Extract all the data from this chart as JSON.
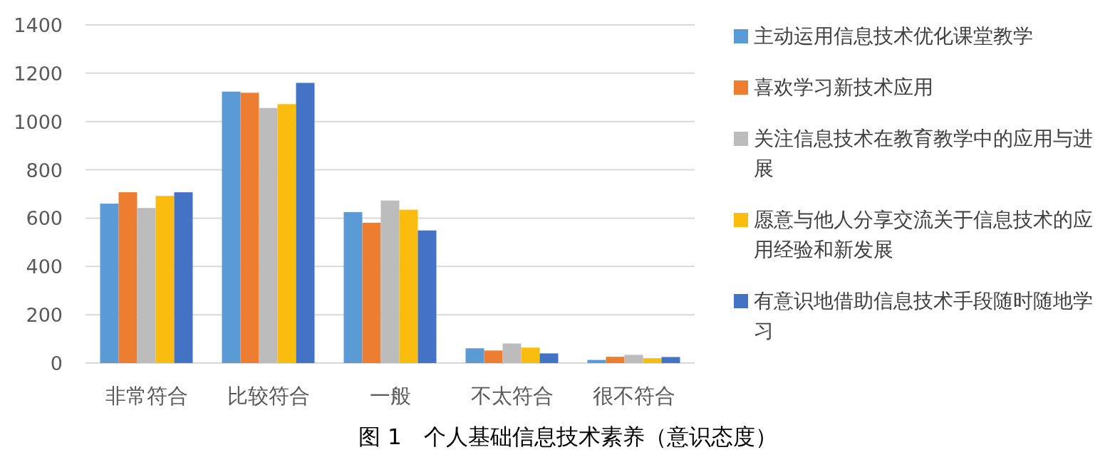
{
  "chart_data": {
    "type": "bar",
    "title": "图 1　个人基础信息技术素养（意识态度）",
    "categories": [
      "非常符合",
      "比较符合",
      "一般",
      "不太符合",
      "很不符合"
    ],
    "series": [
      {
        "name": "主动运用信息技术优化课堂教学",
        "color": "#5b9bd5",
        "values": [
          660,
          1124,
          625,
          61,
          13
        ]
      },
      {
        "name": "喜欢学习新技术应用",
        "color": "#ed7d31",
        "values": [
          707,
          1119,
          581,
          52,
          26
        ]
      },
      {
        "name": "关注信息技术在教育教学中的应用与进展",
        "color": "#bcbcbc",
        "values": [
          642,
          1056,
          673,
          81,
          34
        ]
      },
      {
        "name": "愿意与他人分享交流关于信息技术的应用经验和新发展",
        "color": "#fbbc10",
        "values": [
          692,
          1072,
          635,
          64,
          20
        ]
      },
      {
        "name": "有意识地借助信息技术手段随时随地学习",
        "color": "#4472c4",
        "values": [
          707,
          1160,
          549,
          40,
          25
        ]
      }
    ],
    "ylim": [
      0,
      1400
    ],
    "yticks": [
      0,
      200,
      400,
      600,
      800,
      1000,
      1200,
      1400
    ],
    "grid": "y",
    "legend": "right"
  }
}
